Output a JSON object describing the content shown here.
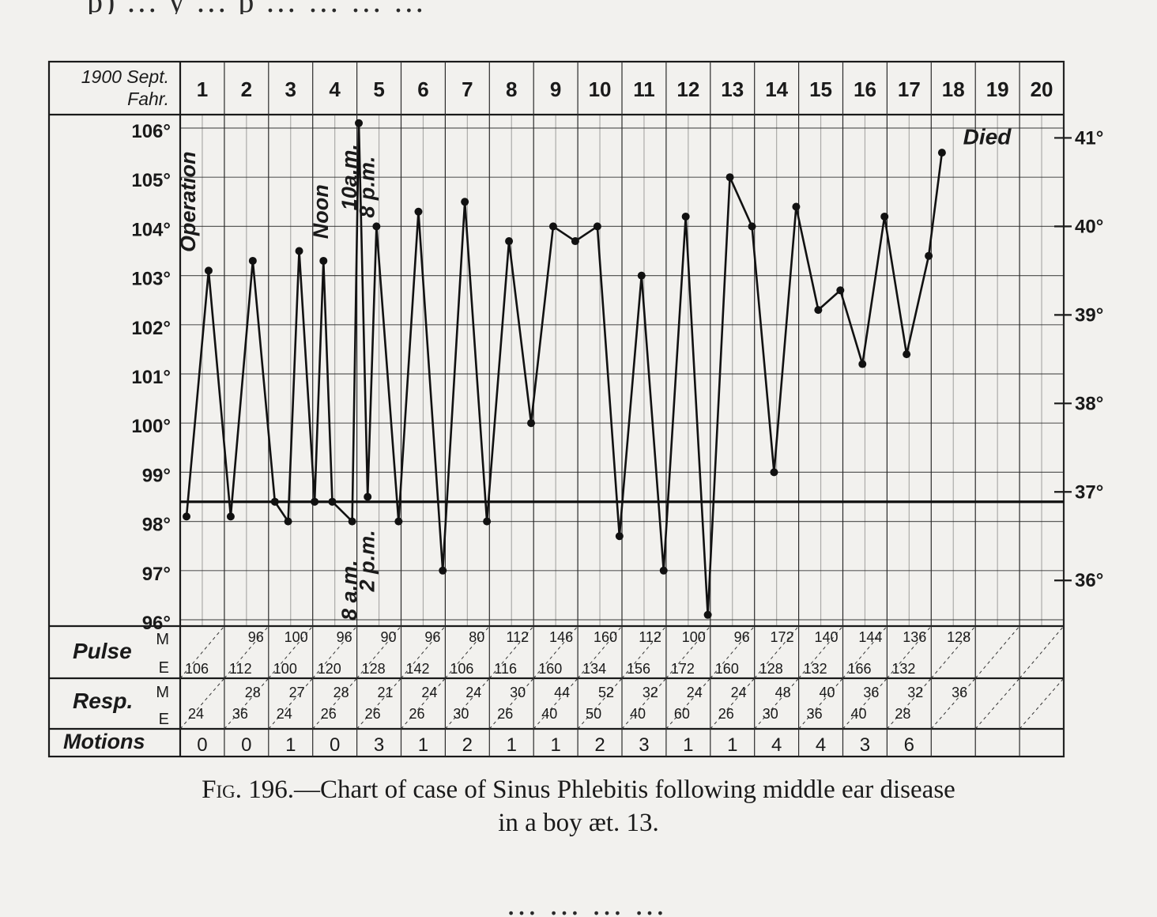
{
  "page": {
    "top_text": "p) … y … p … … … …",
    "bottom_text": "… … … …",
    "caption_fig": "Fig. 196.",
    "caption_line1": "—Chart of case of Sinus Phlebitis following middle ear disease",
    "caption_line2": "in a boy æt. 13."
  },
  "chart_data": {
    "type": "line",
    "title": "",
    "header_label_line1": "1900 Sept.",
    "header_label_line2": "Fahr.",
    "days": [
      "1",
      "2",
      "3",
      "4",
      "5",
      "6",
      "7",
      "8",
      "9",
      "10",
      "11",
      "12",
      "13",
      "14",
      "15",
      "16",
      "17",
      "18",
      "19",
      "20"
    ],
    "y_ticks_f": [
      "106°",
      "105°",
      "104°",
      "103°",
      "102°",
      "101°",
      "100°",
      "99°",
      "98°",
      "97°",
      "96°"
    ],
    "y_ticks_c": [
      "41°",
      "40°",
      "39°",
      "38°",
      "37°",
      "36°"
    ],
    "ylim_f": [
      96,
      106
    ],
    "normal_line_f": 98.4,
    "grid": true,
    "annotations": [
      {
        "text": "Operation",
        "day": 1.2,
        "y": 104.5
      },
      {
        "text": "Noon",
        "day": 4.2,
        "y": 104.3
      },
      {
        "text": "10a.m.",
        "day": 4.85,
        "y": 105.0
      },
      {
        "text": "8 p.m.",
        "day": 5.25,
        "y": 104.8
      },
      {
        "text": "8 a.m.",
        "day": 4.85,
        "y": 96.6
      },
      {
        "text": "2 p.m.",
        "day": 5.25,
        "y": 97.2
      },
      {
        "text": "Died",
        "day": 18.4,
        "y": 105.7
      }
    ],
    "series": [
      {
        "points": [
          [
            1.0,
            98.1
          ],
          [
            1.5,
            103.1
          ],
          [
            2.0,
            98.1
          ],
          [
            2.5,
            103.3
          ],
          [
            3.0,
            98.4
          ],
          [
            3.3,
            98.0
          ],
          [
            3.55,
            103.5
          ],
          [
            3.9,
            98.4
          ],
          [
            4.1,
            103.3
          ],
          [
            4.3,
            98.4
          ],
          [
            4.75,
            98.0
          ],
          [
            4.9,
            106.1
          ],
          [
            5.1,
            98.5
          ],
          [
            5.3,
            104.0
          ],
          [
            5.8,
            98.0
          ],
          [
            6.25,
            104.3
          ],
          [
            6.8,
            97.0
          ],
          [
            7.3,
            104.5
          ],
          [
            7.8,
            98.0
          ],
          [
            8.3,
            103.7
          ],
          [
            8.8,
            100.0
          ],
          [
            9.3,
            104.0
          ],
          [
            9.8,
            103.7
          ],
          [
            10.3,
            104.0
          ],
          [
            10.8,
            97.7
          ],
          [
            11.3,
            103.0
          ],
          [
            11.8,
            97.0
          ],
          [
            12.3,
            104.2
          ],
          [
            12.8,
            96.1
          ],
          [
            13.3,
            105.0
          ],
          [
            13.8,
            104.0
          ],
          [
            14.3,
            99.0
          ],
          [
            14.8,
            104.4
          ],
          [
            15.3,
            102.3
          ],
          [
            15.8,
            102.7
          ],
          [
            16.3,
            101.2
          ],
          [
            16.8,
            104.2
          ],
          [
            17.3,
            101.4
          ],
          [
            17.8,
            103.4
          ],
          [
            18.1,
            105.5
          ]
        ]
      }
    ],
    "table": {
      "pulse_label": "Pulse",
      "resp_label": "Resp.",
      "motions_label": "Motions",
      "m_label": "M",
      "e_label": "E",
      "pulse_m": [
        "",
        "96",
        "100",
        "96",
        "90",
        "96",
        "80",
        "112",
        "146",
        "160",
        "112",
        "100",
        "96",
        "172",
        "140",
        "144",
        "136",
        "128",
        "",
        ""
      ],
      "pulse_e": [
        "106",
        "112",
        "100",
        "120",
        "128",
        "142",
        "106",
        "116",
        "160",
        "134",
        "156",
        "172",
        "160",
        "128",
        "132",
        "166",
        "132",
        "",
        "",
        ""
      ],
      "resp_m": [
        "",
        "28",
        "27",
        "28",
        "21",
        "24",
        "24",
        "30",
        "44",
        "52",
        "32",
        "24",
        "24",
        "48",
        "40",
        "36",
        "32",
        "36",
        "",
        ""
      ],
      "resp_e": [
        "24",
        "36",
        "24",
        "26",
        "26",
        "26",
        "30",
        "26",
        "40",
        "50",
        "40",
        "60",
        "26",
        "30",
        "36",
        "40",
        "28",
        "",
        "",
        ""
      ],
      "motions": [
        "0",
        "0",
        "1",
        "0",
        "3",
        "1",
        "2",
        "1",
        "1",
        "2",
        "3",
        "1",
        "1",
        "4",
        "4",
        "3",
        "6",
        "",
        "",
        ""
      ]
    }
  }
}
